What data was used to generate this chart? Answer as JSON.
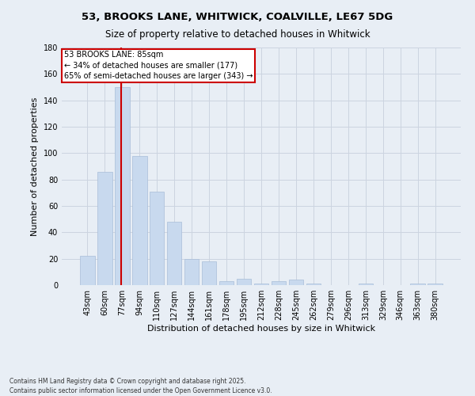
{
  "title_line1": "53, BROOKS LANE, WHITWICK, COALVILLE, LE67 5DG",
  "title_line2": "Size of property relative to detached houses in Whitwick",
  "xlabel": "Distribution of detached houses by size in Whitwick",
  "ylabel": "Number of detached properties",
  "categories": [
    "43sqm",
    "60sqm",
    "77sqm",
    "94sqm",
    "110sqm",
    "127sqm",
    "144sqm",
    "161sqm",
    "178sqm",
    "195sqm",
    "212sqm",
    "228sqm",
    "245sqm",
    "262sqm",
    "279sqm",
    "296sqm",
    "313sqm",
    "329sqm",
    "346sqm",
    "363sqm",
    "380sqm"
  ],
  "values": [
    22,
    86,
    150,
    98,
    71,
    48,
    20,
    18,
    3,
    5,
    1,
    3,
    4,
    1,
    0,
    0,
    1,
    0,
    0,
    1,
    1
  ],
  "bar_color": "#c8d9ee",
  "bar_edge_color": "#a8bdd8",
  "grid_color": "#ccd4e0",
  "background_color": "#e8eef5",
  "vline_color": "#cc0000",
  "annotation_text": "53 BROOKS LANE: 85sqm\n← 34% of detached houses are smaller (177)\n65% of semi-detached houses are larger (343) →",
  "annotation_box_color": "#ffffff",
  "annotation_box_edge": "#cc0000",
  "ylim": [
    0,
    180
  ],
  "yticks": [
    0,
    20,
    40,
    60,
    80,
    100,
    120,
    140,
    160,
    180
  ],
  "footer_line1": "Contains HM Land Registry data © Crown copyright and database right 2025.",
  "footer_line2": "Contains public sector information licensed under the Open Government Licence v3.0.",
  "title1_fontsize": 9.5,
  "title2_fontsize": 8.5,
  "xlabel_fontsize": 8,
  "ylabel_fontsize": 8,
  "tick_fontsize": 7,
  "footer_fontsize": 5.5
}
